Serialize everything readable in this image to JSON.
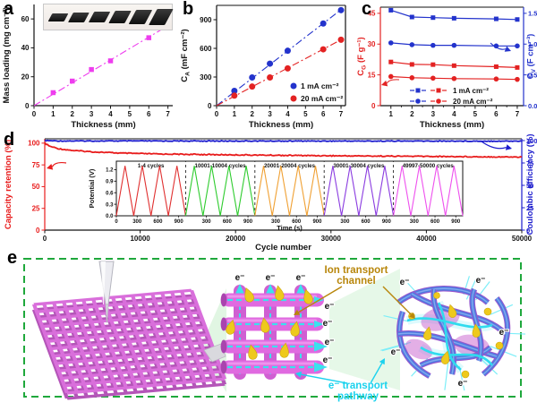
{
  "figure": {
    "panels": {
      "a": "a",
      "b": "b",
      "c": "c",
      "d": "d",
      "e": "e"
    }
  },
  "chart_data": [
    {
      "id": "a",
      "type": "scatter",
      "xlabel": "Thickness (mm)",
      "ylabel": "Mass loading (mg cm⁻²)",
      "xlim": [
        0,
        7.25
      ],
      "ylim": [
        0,
        70
      ],
      "xticks": [
        0,
        1,
        2,
        3,
        4,
        5,
        6,
        7
      ],
      "yticks": [
        0,
        20,
        40,
        60
      ],
      "x": [
        1,
        2,
        3,
        4,
        6,
        7
      ],
      "series": [
        {
          "name": "mass loading",
          "color": "#ee3dee",
          "marker": "square",
          "connect": false,
          "values": [
            9,
            17,
            25,
            31,
            47,
            55
          ]
        }
      ],
      "fit_lines": [
        {
          "color": "#ee3dee",
          "x": [
            0,
            7.15
          ],
          "y": [
            0,
            56.5
          ]
        }
      ],
      "inset_photo": {
        "sample_count": 6
      }
    },
    {
      "id": "b",
      "type": "scatter",
      "xlabel": "Thickness (mm)",
      "ylabel": "C_{A} (mF cm⁻²)",
      "xlim": [
        0,
        7.25
      ],
      "ylim": [
        0,
        1050
      ],
      "xticks": [
        0,
        1,
        2,
        3,
        4,
        5,
        6,
        7
      ],
      "yticks": [
        0,
        300,
        600,
        900
      ],
      "x": [
        1,
        2,
        3,
        4,
        6,
        7
      ],
      "series": [
        {
          "name": "1 mA cm⁻²",
          "color": "#2333cc",
          "marker": "circle",
          "connect": false,
          "values": [
            155,
            295,
            440,
            575,
            860,
            1000
          ]
        },
        {
          "name": "20 mA cm⁻²",
          "color": "#e32222",
          "marker": "circle",
          "connect": false,
          "values": [
            105,
            200,
            295,
            390,
            590,
            690
          ]
        }
      ],
      "fit_lines": [
        {
          "color": "#2333cc",
          "x": [
            0,
            7.1
          ],
          "y": [
            0,
            1019
          ]
        },
        {
          "color": "#e32222",
          "x": [
            0,
            7.15
          ],
          "y": [
            0,
            705
          ]
        }
      ],
      "legend": [
        {
          "label": "1 mA cm⁻²",
          "color": "#2333cc",
          "marker": "circle"
        },
        {
          "label": "20 mA cm⁻²",
          "color": "#e32222",
          "marker": "circle"
        }
      ]
    },
    {
      "id": "c",
      "type": "line",
      "xlabel": "Thickness (mm)",
      "ylabel": "C_{G} (F g⁻¹)",
      "y2label": "C_{V} (F cm⁻³)",
      "xlim": [
        0.5,
        7.3
      ],
      "ylim": [
        0,
        48
      ],
      "y2lim": [
        0,
        1.6
      ],
      "xticks": [
        1,
        2,
        3,
        4,
        5,
        6,
        7
      ],
      "yticks": [
        0,
        15,
        30,
        45
      ],
      "y2ticks": [
        "0.0",
        "0.5",
        "1.0",
        "1.5"
      ],
      "x": [
        1,
        2,
        3,
        4,
        6,
        7
      ],
      "series": [
        {
          "name": "C_V at 1 mA cm⁻²",
          "axis": "right",
          "color": "#2333cc",
          "marker": "square",
          "values": [
            1.55,
            1.44,
            1.43,
            1.42,
            1.41,
            1.4
          ]
        },
        {
          "name": "C_V at 20 mA cm⁻²",
          "axis": "right",
          "color": "#2333cc",
          "marker": "circle",
          "values": [
            1.02,
            0.99,
            0.98,
            0.98,
            0.97,
            0.97
          ]
        },
        {
          "name": "C_G at 1 mA cm⁻²",
          "axis": "left",
          "color": "#e32222",
          "marker": "square",
          "values": [
            21.3,
            20.1,
            20.0,
            19.5,
            19.0,
            18.6
          ]
        },
        {
          "name": "C_G at 20 mA cm⁻²",
          "axis": "left",
          "color": "#e32222",
          "marker": "circle",
          "values": [
            14.2,
            13.6,
            13.4,
            13.2,
            13.0,
            12.8
          ]
        }
      ],
      "legend_dual": [
        {
          "label": "1 mA cm⁻²",
          "marker": "square",
          "colors": [
            "#2333cc",
            "#e32222"
          ]
        },
        {
          "label": "20 mA cm⁻²",
          "marker": "circle",
          "colors": [
            "#2333cc",
            "#e32222"
          ]
        }
      ]
    },
    {
      "id": "d",
      "type": "line",
      "xlabel": "Cycle number",
      "ylabel": "Capacity retention (%)",
      "y2label": "Coulombic efficiency (%)",
      "xlim": [
        0,
        50000
      ],
      "ylim": [
        0,
        105
      ],
      "y2lim": [
        0,
        102
      ],
      "xticks": [
        0,
        10000,
        20000,
        30000,
        40000,
        50000
      ],
      "yticks": [
        0,
        25,
        50,
        75,
        100
      ],
      "y2ticks": [
        0,
        25,
        50,
        75,
        100
      ],
      "series": [
        {
          "name": "Capacity retention",
          "axis": "left",
          "color": "#e81c1c",
          "width": 1.8,
          "densify": 360,
          "noise": 0.55,
          "x": [
            0,
            500,
            1500,
            3000,
            5000,
            8000,
            12000,
            20000,
            30000,
            40000,
            50000
          ],
          "values": [
            100,
            96.5,
            93.5,
            91.5,
            90,
            88.5,
            87.5,
            86.5,
            85.5,
            84.8,
            84
          ]
        },
        {
          "name": "Coulombic efficiency",
          "axis": "right",
          "color": "#1c1ccd",
          "width": 1.8,
          "densify": 360,
          "noise": 0.45,
          "x": [
            0,
            1500,
            25000,
            50000
          ],
          "values": [
            100,
            99.6,
            99.5,
            99.4
          ]
        }
      ],
      "inset": {
        "type": "line",
        "xlabel": "Time (s)",
        "ylabel": "Potential (V)",
        "ylim": [
          0,
          1.42
        ],
        "yticks": [
          "0.0",
          "0.3",
          "0.6",
          "0.9",
          "1.2"
        ],
        "peak_v": 1.3,
        "cycles_per_segment": 4,
        "segment_duration_s": 1000,
        "xticks_per_segment": [
          0,
          300,
          600,
          900
        ],
        "segments": [
          {
            "label": "1-4 cycles",
            "color": "#e03030"
          },
          {
            "label": "10001-10004 cycles",
            "color": "#2ecc2e"
          },
          {
            "label": "20001-20004 cycles",
            "color": "#f0a032"
          },
          {
            "label": "30001-30004 cycles",
            "color": "#8a3be0"
          },
          {
            "label": "49997-50000 cycles",
            "color": "#ee50ee"
          }
        ]
      }
    }
  ],
  "panel_e": {
    "labels": {
      "ion_line1": "Ion transport",
      "ion_line2": "channel",
      "path_line1": "e⁻ transport",
      "path_line2": "pathway",
      "electron": "e⁻"
    },
    "colors": {
      "border": "#1fa83c",
      "scaffold": "#d96fdb",
      "ion": "#eec91c",
      "ion_label": "#b8860b",
      "electron_label": "#1cd2ee",
      "network_tube": "#4f7ce0"
    }
  }
}
